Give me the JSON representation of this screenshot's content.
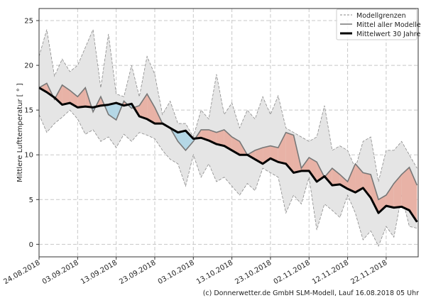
{
  "chart_data": {
    "type": "area",
    "title": "",
    "xlabel": "",
    "ylabel": "Mittlere Lufttemperatur [ ° ]",
    "x_unit": "days since 24.08.2018 (2-day steps)",
    "x": [
      0,
      2,
      4,
      6,
      8,
      10,
      12,
      14,
      16,
      18,
      20,
      22,
      24,
      26,
      28,
      30,
      32,
      34,
      36,
      38,
      40,
      42,
      44,
      46,
      48,
      50,
      52,
      54,
      56,
      58,
      60,
      62,
      64,
      66,
      68,
      70,
      72,
      74,
      76,
      78,
      80,
      82,
      84,
      86,
      88,
      90,
      92,
      94,
      96,
      98
    ],
    "xlim": [
      0,
      98.3
    ],
    "ylim": [
      -1.4,
      26.35
    ],
    "yticks": [
      0,
      5,
      10,
      15,
      20,
      25
    ],
    "xtick_days": [
      0,
      10,
      20,
      30,
      40,
      50,
      60,
      70,
      80,
      90
    ],
    "xtick_labels": [
      "24.08.2018",
      "03.09.2018",
      "13.09.2018",
      "23.09.2018",
      "03.10.2018",
      "13.10.2018",
      "23.10.2018",
      "02.11.2018",
      "12.11.2018",
      "22.11.2018"
    ],
    "grid": true,
    "legend_position": "top-right",
    "series": [
      {
        "name": "Modellgrenzen",
        "role": "upper",
        "values": [
          21,
          24,
          18.8,
          20.7,
          19.3,
          20,
          22,
          24,
          17.5,
          23.5,
          16.8,
          16.5,
          20,
          16.5,
          21,
          19,
          14.5,
          16,
          13.5,
          13.5,
          12,
          15,
          14,
          19,
          14.5,
          15.8,
          13,
          15,
          14,
          16.5,
          14.5,
          16.6,
          13,
          12.5,
          12,
          11.5,
          12,
          15.5,
          10.5,
          11,
          10.5,
          8.5,
          11.5,
          12,
          7,
          10.5,
          10.5,
          11.5,
          10,
          8.5
        ]
      },
      {
        "name": "Modellgrenzen",
        "role": "lower",
        "values": [
          14.5,
          12.5,
          13.5,
          14.2,
          15,
          14,
          12.3,
          12.8,
          11.5,
          12,
          10.8,
          12.3,
          11.5,
          12.5,
          12.2,
          11.8,
          10.5,
          9.5,
          9,
          6.5,
          10,
          7.5,
          9,
          7,
          7.5,
          6.5,
          5.5,
          6.8,
          6,
          8.5,
          8,
          7.5,
          3.5,
          5.5,
          4.5,
          7.5,
          1.6,
          4.5,
          3.8,
          3,
          5.5,
          3.5,
          0.5,
          1.5,
          -0.2,
          2,
          0.8,
          5.5,
          2,
          1.8
        ]
      },
      {
        "name": "Mittel aller Modelle",
        "values": [
          17.5,
          18,
          16.2,
          17.8,
          17.2,
          16.5,
          17.5,
          14.8,
          16.5,
          14.5,
          13.9,
          16,
          15.2,
          15.5,
          16.8,
          15.3,
          13.5,
          13,
          11.5,
          10.5,
          11.5,
          12.8,
          12.8,
          12.5,
          12.8,
          12,
          11.5,
          10,
          10.5,
          10.8,
          11,
          10.8,
          12.5,
          12.2,
          8.5,
          9.7,
          9.2,
          7.5,
          8.5,
          7.8,
          7,
          9,
          8,
          7.8,
          5,
          5.5,
          6.8,
          7.8,
          8.6,
          6.6
        ]
      },
      {
        "name": "Mittelwert 30 Jahre",
        "values": [
          17.5,
          17,
          16.4,
          15.6,
          15.8,
          15.3,
          15.4,
          15.3,
          15.5,
          15.6,
          15.8,
          15.5,
          15.7,
          14.3,
          14,
          13.5,
          13.5,
          13,
          12.5,
          12.7,
          11.8,
          11.9,
          11.6,
          11.2,
          11,
          10.5,
          10,
          10,
          9.5,
          9,
          9.6,
          9.2,
          9,
          8,
          8.2,
          8.2,
          7,
          7.6,
          6.6,
          6.7,
          6.2,
          5.8,
          6.3,
          5.2,
          3.5,
          4.3,
          4.1,
          4.2,
          3.8,
          2.5
        ]
      }
    ],
    "legend": [
      "Modellgrenzen",
      "Mittel aller Modelle",
      "Mittelwert 30 Jahre"
    ]
  },
  "colors": {
    "band": "#e5e5e5",
    "band_edge": "#8a8a8a",
    "warm": "#e8b2a6",
    "cold": "#b4d7e6",
    "mean": "#777777",
    "clim": "#000000"
  },
  "credit": "(c) Donnerwetter.de GmbH SLM-Modell, Lauf 16.08.2018 05 Uhr"
}
